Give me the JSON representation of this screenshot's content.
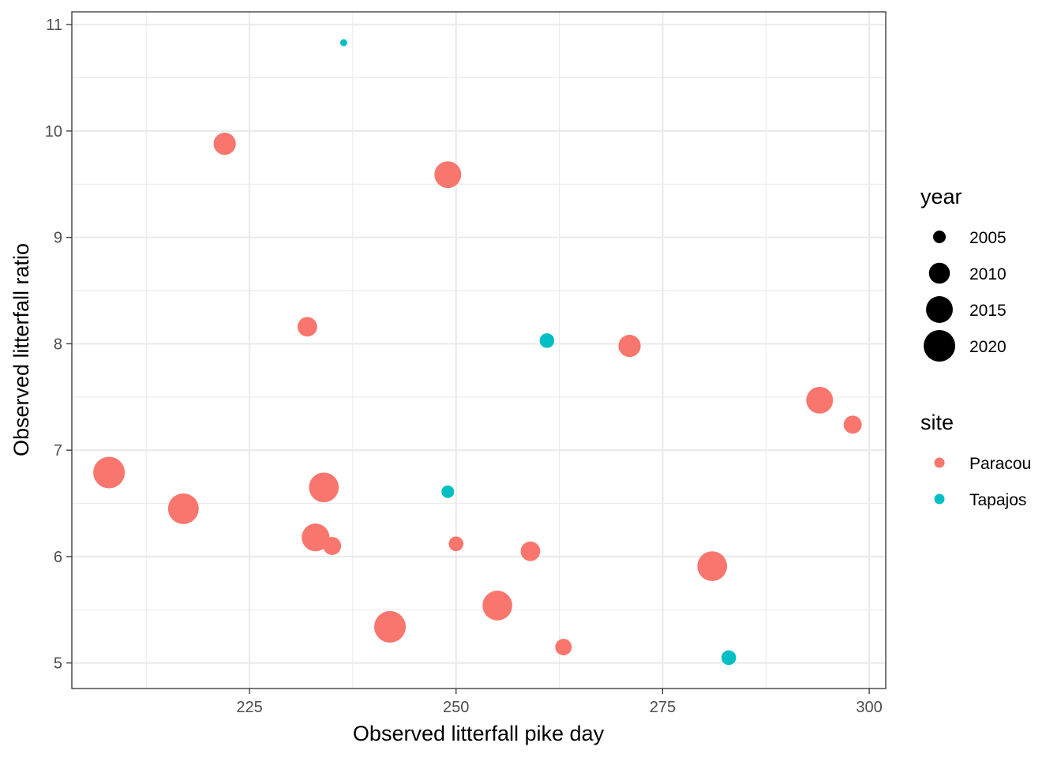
{
  "chart_data": {
    "type": "scatter",
    "title": "",
    "xlabel": "Observed litterfall pike day",
    "ylabel": "Observed litterfall ratio",
    "xlim": [
      203.5,
      302.0
    ],
    "ylim": [
      4.76,
      11.12
    ],
    "x_ticks": [
      225,
      250,
      275,
      300
    ],
    "x_tick_labels": [
      "225",
      "250",
      "275",
      "300"
    ],
    "y_ticks": [
      5,
      6,
      7,
      8,
      9,
      10,
      11
    ],
    "y_tick_labels": [
      "5",
      "6",
      "7",
      "8",
      "9",
      "10",
      "11"
    ],
    "grid": true,
    "legend_position": "right",
    "size_legend": {
      "title": "year",
      "values": [
        2005,
        2010,
        2015,
        2020
      ],
      "labels": [
        "2005",
        "2010",
        "2015",
        "2020"
      ]
    },
    "color_legend": {
      "title": "site",
      "entries": [
        {
          "label": "Paracou",
          "color": "#F8766D"
        },
        {
          "label": "Tapajos",
          "color": "#00BFC4"
        }
      ]
    },
    "size_range": {
      "year_min": 2003,
      "year_max": 2020
    },
    "points": [
      {
        "site": "Tapajos",
        "x": 236.4,
        "y": 10.83,
        "year": 2003
      },
      {
        "site": "Paracou",
        "x": 222.0,
        "y": 9.88,
        "year": 2011
      },
      {
        "site": "Paracou",
        "x": 249.0,
        "y": 9.59,
        "year": 2015
      },
      {
        "site": "Paracou",
        "x": 232.0,
        "y": 8.16,
        "year": 2009
      },
      {
        "site": "Tapajos",
        "x": 261.0,
        "y": 8.03,
        "year": 2006
      },
      {
        "site": "Paracou",
        "x": 271.0,
        "y": 7.98,
        "year": 2011
      },
      {
        "site": "Paracou",
        "x": 294.0,
        "y": 7.47,
        "year": 2015
      },
      {
        "site": "Paracou",
        "x": 298.0,
        "y": 7.24,
        "year": 2008
      },
      {
        "site": "Paracou",
        "x": 208.0,
        "y": 6.79,
        "year": 2020
      },
      {
        "site": "Paracou",
        "x": 234.0,
        "y": 6.65,
        "year": 2018
      },
      {
        "site": "Tapajos",
        "x": 249.0,
        "y": 6.61,
        "year": 2005
      },
      {
        "site": "Paracou",
        "x": 217.0,
        "y": 6.45,
        "year": 2019
      },
      {
        "site": "Paracou",
        "x": 233.0,
        "y": 6.18,
        "year": 2016
      },
      {
        "site": "Paracou",
        "x": 250.0,
        "y": 6.12,
        "year": 2006
      },
      {
        "site": "Paracou",
        "x": 235.0,
        "y": 6.1,
        "year": 2008
      },
      {
        "site": "Paracou",
        "x": 259.0,
        "y": 6.05,
        "year": 2009
      },
      {
        "site": "Paracou",
        "x": 281.0,
        "y": 5.91,
        "year": 2018
      },
      {
        "site": "Paracou",
        "x": 255.0,
        "y": 5.54,
        "year": 2018
      },
      {
        "site": "Paracou",
        "x": 242.0,
        "y": 5.34,
        "year": 2020
      },
      {
        "site": "Paracou",
        "x": 263.0,
        "y": 5.15,
        "year": 2007
      },
      {
        "site": "Tapajos",
        "x": 283.0,
        "y": 5.05,
        "year": 2006
      }
    ]
  }
}
